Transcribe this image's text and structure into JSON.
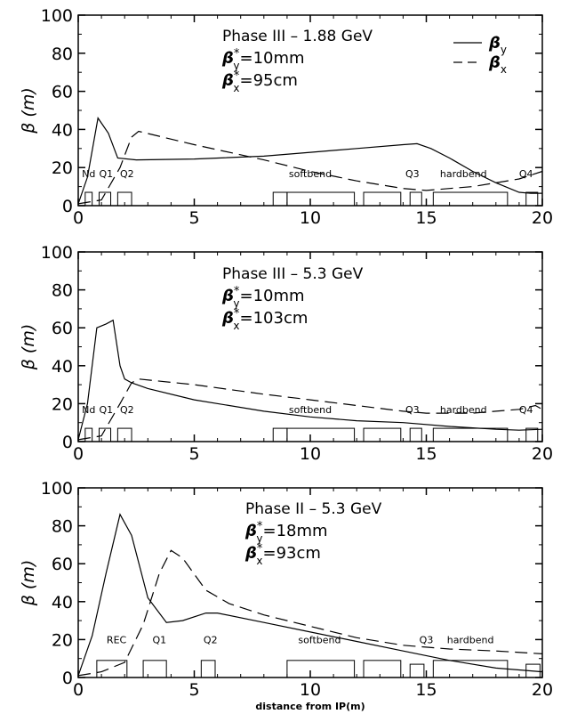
{
  "chart_data": [
    {
      "type": "line",
      "annotation": {
        "title": "Phase III – 1.88 GeV",
        "line1": "β*",
        "sub1": "y",
        "val1": "=10mm",
        "line2": "β*",
        "sub2": "x",
        "val2": "=95cm"
      },
      "ylabel": "β (m)",
      "xlabel": "",
      "xlim": [
        0,
        20
      ],
      "ylim": [
        0,
        100
      ],
      "x_ticks": [
        "0",
        "5",
        "10",
        "15",
        "20"
      ],
      "y_ticks": [
        "0",
        "20",
        "40",
        "60",
        "80",
        "100"
      ],
      "legend": [
        {
          "name": "β",
          "sub": "y",
          "dash": "solid"
        },
        {
          "name": "β",
          "sub": "x",
          "dash": "dashed"
        }
      ],
      "legend_position": "top-right",
      "series": [
        {
          "name": "βy",
          "style": "solid",
          "x": [
            0,
            0.4,
            0.85,
            1.3,
            1.7,
            2.5,
            5,
            8,
            10,
            12,
            14,
            14.6,
            15.2,
            16,
            17,
            18,
            19,
            19.5,
            20
          ],
          "y": [
            1,
            15,
            46,
            38,
            25,
            24,
            24.5,
            26,
            28,
            30,
            32,
            32.5,
            30,
            25,
            18,
            12,
            7,
            6.5,
            6.5
          ]
        },
        {
          "name": "βx",
          "style": "dashed",
          "x": [
            0,
            1,
            1.8,
            2.3,
            2.6,
            5,
            8,
            10,
            12,
            14,
            15,
            16,
            17,
            18,
            19,
            20
          ],
          "y": [
            1,
            3,
            20,
            36,
            39,
            32,
            24,
            18,
            13,
            9,
            8,
            9,
            10,
            12,
            14,
            18
          ]
        }
      ],
      "magnets": [
        {
          "label": "Nd",
          "x0": 0.3,
          "x1": 0.6,
          "h": 7
        },
        {
          "label": "Q1",
          "x0": 0.9,
          "x1": 1.4,
          "h": 7
        },
        {
          "label": "Q2",
          "x0": 1.7,
          "x1": 2.3,
          "h": 7
        },
        {
          "label": "",
          "x0": 8.4,
          "x1": 9.0,
          "h": 7
        },
        {
          "label": "softbend",
          "x0": 9.0,
          "x1": 11.9,
          "h": 7
        },
        {
          "label": "",
          "x0": 12.3,
          "x1": 13.9,
          "h": 7
        },
        {
          "label": "Q3",
          "x0": 14.3,
          "x1": 14.8,
          "h": 7
        },
        {
          "label": "hardbend",
          "x0": 15.3,
          "x1": 18.5,
          "h": 7
        },
        {
          "label": "Q4",
          "x0": 19.3,
          "x1": 19.8,
          "h": 7
        }
      ],
      "label_positions": {
        "Nd": 0.45,
        "Q1": 1.2,
        "Q2": 2.1,
        "softbend": 10.0,
        "Q3": 14.4,
        "hardbend": 16.6,
        "Q4": 19.3
      },
      "label_y": 15
    },
    {
      "type": "line",
      "annotation": {
        "title": "Phase III – 5.3 GeV",
        "line1": "β*",
        "sub1": "y",
        "val1": "=10mm",
        "line2": "β*",
        "sub2": "x",
        "val2": "=103cm"
      },
      "ylabel": "β (m)",
      "xlabel": "",
      "xlim": [
        0,
        20
      ],
      "ylim": [
        0,
        100
      ],
      "x_ticks": [
        "0",
        "5",
        "10",
        "15",
        "20"
      ],
      "y_ticks": [
        "0",
        "20",
        "40",
        "60",
        "80",
        "100"
      ],
      "series": [
        {
          "name": "βy",
          "style": "solid",
          "x": [
            0,
            0.4,
            0.8,
            1.2,
            1.5,
            1.8,
            2.0,
            2.3,
            3,
            5,
            8,
            10,
            12,
            14,
            16,
            18,
            19,
            20
          ],
          "y": [
            1,
            20,
            60,
            62,
            64,
            40,
            33,
            31,
            28,
            22,
            16,
            13,
            11,
            10,
            8,
            6.5,
            6,
            6.5
          ]
        },
        {
          "name": "βx",
          "style": "dashed",
          "x": [
            0,
            1,
            1.8,
            2.3,
            2.6,
            5,
            8,
            10,
            12,
            14,
            15,
            16,
            17,
            18,
            19,
            19.7,
            20
          ],
          "y": [
            1,
            3,
            20,
            31,
            33,
            30,
            25,
            22,
            19,
            16,
            15,
            15,
            15,
            16,
            17,
            19,
            17
          ]
        }
      ],
      "magnets": [
        {
          "label": "Nd",
          "x0": 0.3,
          "x1": 0.6,
          "h": 7
        },
        {
          "label": "Q1",
          "x0": 0.9,
          "x1": 1.4,
          "h": 7
        },
        {
          "label": "Q2",
          "x0": 1.7,
          "x1": 2.3,
          "h": 7
        },
        {
          "label": "",
          "x0": 8.4,
          "x1": 9.0,
          "h": 7
        },
        {
          "label": "softbend",
          "x0": 9.0,
          "x1": 11.9,
          "h": 7
        },
        {
          "label": "",
          "x0": 12.3,
          "x1": 13.9,
          "h": 7
        },
        {
          "label": "Q3",
          "x0": 14.3,
          "x1": 14.8,
          "h": 7
        },
        {
          "label": "hardbend",
          "x0": 15.3,
          "x1": 18.5,
          "h": 7
        },
        {
          "label": "",
          "x0": 19.3,
          "x1": 19.8,
          "h": 7
        }
      ],
      "label_positions": {
        "Nd": 0.45,
        "Q1": 1.2,
        "Q2": 2.1,
        "softbend": 10.0,
        "Q3": 14.4,
        "hardbend": 16.6,
        "Q4": 19.3
      },
      "extra_labels": [
        "Q4"
      ],
      "label_y": 15
    },
    {
      "type": "line",
      "annotation": {
        "title": "Phase II – 5.3 GeV",
        "line1": "β*",
        "sub1": "y",
        "val1": "=18mm",
        "line2": "β*",
        "sub2": "x",
        "val2": "=93cm"
      },
      "ylabel": "β (m)",
      "xlabel": "distance from IP(m)",
      "xlim": [
        0,
        20
      ],
      "ylim": [
        0,
        100
      ],
      "x_ticks": [
        "0",
        "5",
        "10",
        "15",
        "20"
      ],
      "y_ticks": [
        "0",
        "20",
        "40",
        "60",
        "80",
        "100"
      ],
      "series": [
        {
          "name": "βy",
          "style": "solid",
          "x": [
            0,
            0.6,
            1.2,
            1.8,
            2.3,
            3.0,
            3.8,
            4.5,
            5.5,
            6.0,
            8,
            10,
            12,
            14,
            16,
            18,
            19,
            20
          ],
          "y": [
            1,
            22,
            55,
            86,
            75,
            42,
            29,
            30,
            34,
            34,
            29,
            24,
            19,
            14,
            9,
            5,
            4,
            3
          ]
        },
        {
          "name": "βx",
          "style": "dashed",
          "x": [
            0,
            1,
            2,
            2.8,
            3.5,
            4.0,
            4.5,
            5.5,
            6.5,
            8,
            10,
            12,
            14,
            16,
            18,
            20
          ],
          "y": [
            1,
            3,
            8,
            28,
            55,
            67,
            63,
            46,
            39,
            33,
            27,
            21,
            17,
            15,
            14,
            12.5
          ]
        }
      ],
      "magnets": [
        {
          "label": "REC",
          "x0": 0.8,
          "x1": 2.1,
          "h": 9
        },
        {
          "label": "Q1",
          "x0": 2.8,
          "x1": 3.8,
          "h": 9
        },
        {
          "label": "Q2",
          "x0": 5.3,
          "x1": 5.9,
          "h": 9
        },
        {
          "label": "softbend",
          "x0": 9.0,
          "x1": 11.9,
          "h": 9
        },
        {
          "label": "",
          "x0": 12.3,
          "x1": 13.9,
          "h": 9
        },
        {
          "label": "Q3",
          "x0": 14.3,
          "x1": 14.9,
          "h": 7
        },
        {
          "label": "hardbend",
          "x0": 15.3,
          "x1": 18.5,
          "h": 9
        },
        {
          "label": "",
          "x0": 19.3,
          "x1": 19.9,
          "h": 7
        }
      ],
      "label_positions": {
        "REC": 1.65,
        "Q1": 3.5,
        "Q2": 5.7,
        "softbend": 10.4,
        "Q3": 15.0,
        "hardbend": 16.9
      },
      "label_y": 18
    }
  ]
}
